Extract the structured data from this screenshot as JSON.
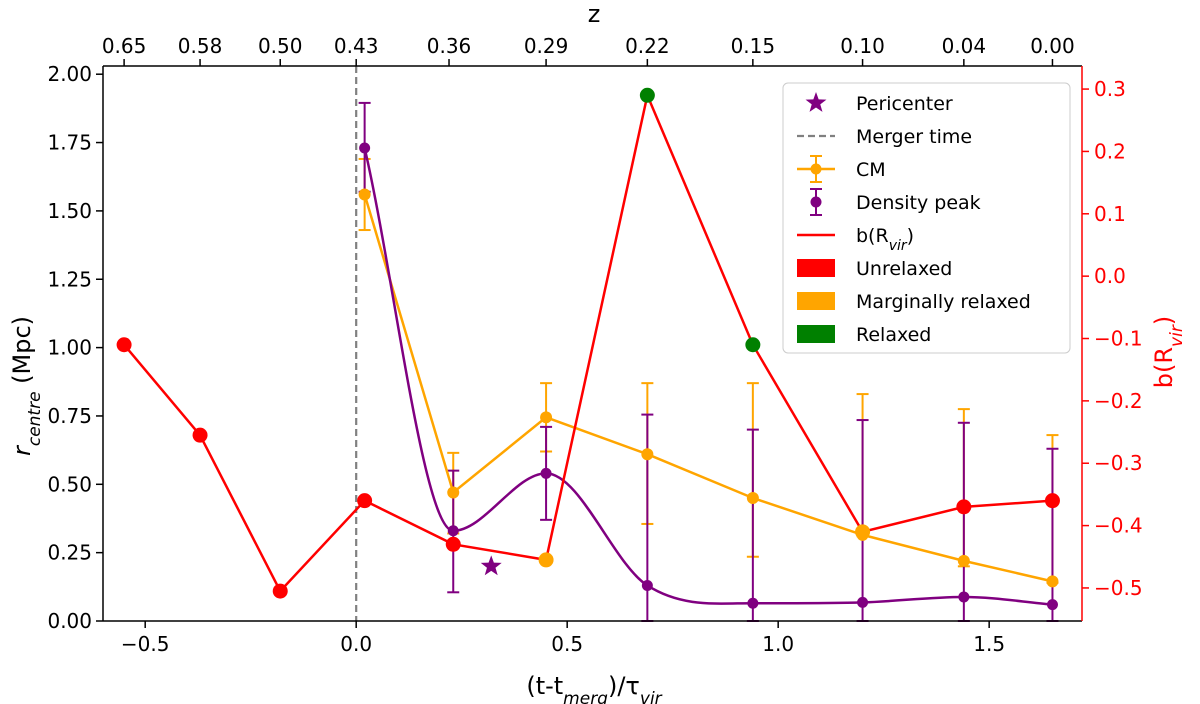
{
  "chart_data": {
    "type": "line",
    "xlabel_main": "(t-t",
    "xlabel_sub": "merg",
    "xlabel_tail": ")/τ",
    "xlabel_sub2": "vir",
    "ylabel_main": "r",
    "ylabel_sub": "centre",
    "ylabel_tail": " (Mpc)",
    "y2label_main": "b(R",
    "y2label_sub": "vir",
    "y2label_tail": ")",
    "top_axis_label": "z",
    "xlim": [
      -0.6,
      1.72
    ],
    "ylim": [
      0,
      2.03
    ],
    "y2lim": [
      -0.553,
      0.337
    ],
    "x_ticks": [
      -0.5,
      0.0,
      0.5,
      1.0,
      1.5
    ],
    "x_tick_labels": [
      "−0.5",
      "0.0",
      "0.5",
      "1.0",
      "1.5"
    ],
    "y_ticks": [
      0.0,
      0.25,
      0.5,
      0.75,
      1.0,
      1.25,
      1.5,
      1.75,
      2.0
    ],
    "y_tick_labels": [
      "0.00",
      "0.25",
      "0.50",
      "0.75",
      "1.00",
      "1.25",
      "1.50",
      "1.75",
      "2.00"
    ],
    "y2_ticks": [
      -0.5,
      -0.4,
      -0.3,
      -0.2,
      -0.1,
      0.0,
      0.1,
      0.2,
      0.3
    ],
    "y2_tick_labels": [
      "−0.5",
      "−0.4",
      "−0.3",
      "−0.2",
      "−0.1",
      "0.0",
      "0.1",
      "0.2",
      "0.3"
    ],
    "top_ticks": [
      -0.55,
      -0.37,
      -0.18,
      0.0,
      0.22,
      0.45,
      0.69,
      0.94,
      1.2,
      1.44,
      1.65
    ],
    "top_tick_labels": [
      "0.65",
      "0.58",
      "0.50",
      "0.43",
      "0.36",
      "0.29",
      "0.22",
      "0.15",
      "0.10",
      "0.04",
      "0.00"
    ],
    "merger_time_x": 0.0,
    "pericenter": {
      "x": 0.32,
      "y": 0.2
    },
    "series": [
      {
        "name": "CM",
        "color": "#ffa500",
        "x": [
          0.02,
          0.23,
          0.45,
          0.69,
          0.94,
          1.2,
          1.44,
          1.65
        ],
        "y": [
          1.56,
          0.47,
          0.745,
          0.61,
          0.45,
          0.315,
          0.22,
          0.145
        ],
        "err_low": [
          1.43,
          0.32,
          0.62,
          0.355,
          0.235,
          0.31,
          0.2,
          0.14
        ],
        "err_high": [
          1.69,
          0.615,
          0.87,
          0.87,
          0.87,
          0.83,
          0.775,
          0.68
        ]
      },
      {
        "name": "Density peak",
        "color": "#800080",
        "x": [
          0.02,
          0.23,
          0.45,
          0.69,
          0.94,
          1.2,
          1.44,
          1.65
        ],
        "y": [
          1.73,
          0.33,
          0.54,
          0.13,
          0.065,
          0.068,
          0.088,
          0.06
        ],
        "err_low": [
          1.57,
          0.105,
          0.37,
          0.0,
          0.0,
          0.0,
          0.0,
          0.0
        ],
        "err_high": [
          1.895,
          0.55,
          0.71,
          0.755,
          0.7,
          0.735,
          0.725,
          0.63
        ]
      },
      {
        "name": "b(Rvir)",
        "color": "#ff0000",
        "x": [
          -0.55,
          -0.37,
          -0.18,
          0.02,
          0.23,
          0.45,
          0.69,
          0.94,
          1.2,
          1.44,
          1.65
        ],
        "y": [
          -0.11,
          -0.255,
          -0.505,
          -0.36,
          -0.43,
          -0.455,
          0.29,
          -0.11,
          -0.41,
          -0.37,
          -0.36
        ],
        "state": [
          "Unrelaxed",
          "Unrelaxed",
          "Unrelaxed",
          "Unrelaxed",
          "Unrelaxed",
          "Marginally relaxed",
          "Relaxed",
          "Relaxed",
          "Marginally relaxed",
          "Unrelaxed",
          "Unrelaxed"
        ]
      }
    ],
    "state_colors": {
      "Unrelaxed": "#ff0000",
      "Marginally relaxed": "#ffa500",
      "Relaxed": "#008000"
    },
    "legend": {
      "position": "top-right",
      "entries": [
        {
          "label": "Pericenter",
          "kind": "star",
          "color": "#800080"
        },
        {
          "label": "Merger time",
          "kind": "dash",
          "color": "#808080"
        },
        {
          "label": "CM",
          "kind": "errline",
          "color": "#ffa500"
        },
        {
          "label": "Density peak",
          "kind": "errmarker",
          "color": "#800080"
        },
        {
          "label_main": "b(R",
          "label_sub": "vir",
          "label_tail": ")",
          "kind": "line",
          "color": "#ff0000"
        },
        {
          "label": "Unrelaxed",
          "kind": "patch",
          "color": "#ff0000"
        },
        {
          "label": "Marginally relaxed",
          "kind": "patch",
          "color": "#ffa500"
        },
        {
          "label": "Relaxed",
          "kind": "patch",
          "color": "#008000"
        }
      ]
    }
  }
}
